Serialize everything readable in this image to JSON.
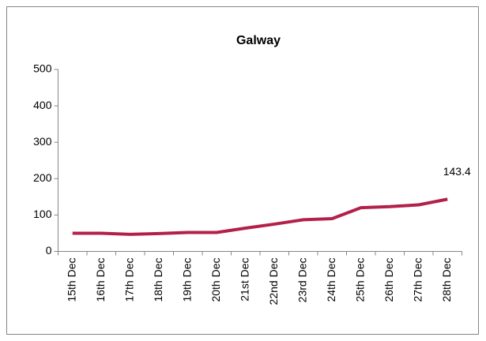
{
  "chart_data": {
    "type": "line",
    "title": "Galway",
    "categories": [
      "15th Dec",
      "16th Dec",
      "17th Dec",
      "18th Dec",
      "19th Dec",
      "20th Dec",
      "21st Dec",
      "22nd Dec",
      "23rd Dec",
      "24th Dec",
      "25th Dec",
      "26th Dec",
      "27th Dec",
      "28th Dec"
    ],
    "values": [
      50,
      50,
      47,
      49,
      52,
      52,
      64,
      75,
      87,
      90,
      120,
      123,
      128,
      143.4
    ],
    "color": "#b3204a",
    "ylim": [
      0,
      500
    ],
    "yticks": [
      0,
      100,
      200,
      300,
      400,
      500
    ],
    "grid": false
  }
}
